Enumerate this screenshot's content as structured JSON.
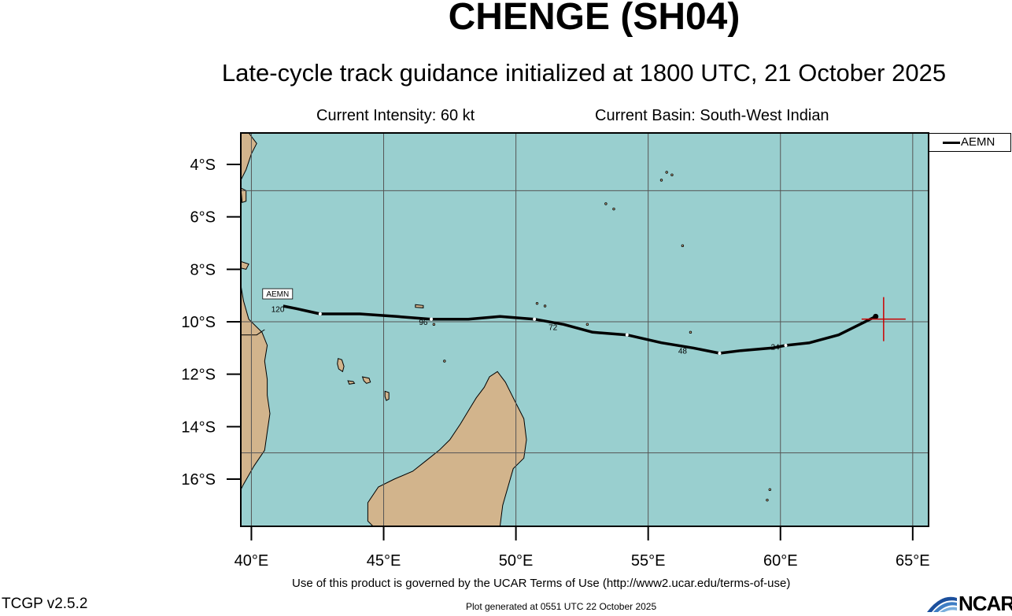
{
  "header": {
    "title": "CHENGE (SH04)",
    "subtitle": "Late-cycle track guidance initialized at 1800 UTC, 21 October 2025",
    "intensity": "Current Intensity: 60 kt",
    "basin": "Current Basin: South-West Indian"
  },
  "legend": {
    "label": "AEMN"
  },
  "footer": {
    "terms": "Use of this product is governed by the UCAR Terms of Use (http://www2.ucar.edu/terms-of-use)",
    "version": "TCGP v2.5.2",
    "generated": "Plot generated at 0551 UTC   22 October 2025",
    "logo_text": "NCAR"
  },
  "colors": {
    "ocean": "#99cfcf",
    "land": "#d2b48c",
    "grid": "#555555",
    "track": "#000000",
    "current_position_marker": "#cc0000"
  },
  "map": {
    "lon_range": [
      39.6,
      65.6
    ],
    "lat_range": [
      -17.8,
      -2.8
    ],
    "x_ticks": [
      {
        "lon": 40,
        "label": "40°E"
      },
      {
        "lon": 45,
        "label": "45°E"
      },
      {
        "lon": 50,
        "label": "50°E"
      },
      {
        "lon": 55,
        "label": "55°E"
      },
      {
        "lon": 60,
        "label": "60°E"
      },
      {
        "lon": 65,
        "label": "65°E"
      }
    ],
    "y_ticks": [
      {
        "lat": -4,
        "label": "4°S"
      },
      {
        "lat": -6,
        "label": "6°S"
      },
      {
        "lat": -8,
        "label": "8°S"
      },
      {
        "lat": -10,
        "label": "10°S"
      },
      {
        "lat": -12,
        "label": "12°S"
      },
      {
        "lat": -14,
        "label": "14°S"
      },
      {
        "lat": -16,
        "label": "16°S"
      }
    ],
    "grid_lons": [
      40,
      45,
      50,
      55,
      60,
      65
    ],
    "grid_lats": [
      -5,
      -10,
      -15
    ]
  },
  "chart_data": {
    "type": "line",
    "series": [
      {
        "name": "AEMN",
        "points": [
          {
            "lon": 63.6,
            "lat": -9.8
          },
          {
            "lon": 62.2,
            "lat": -10.5
          },
          {
            "lon": 61.1,
            "lat": -10.8
          },
          {
            "lon": 60.2,
            "lat": -10.9
          },
          {
            "lon": 59.7,
            "lat": -11.0
          },
          {
            "lon": 58.5,
            "lat": -11.1
          },
          {
            "lon": 57.7,
            "lat": -11.2
          },
          {
            "lon": 56.7,
            "lat": -11.0
          },
          {
            "lon": 55.5,
            "lat": -10.8
          },
          {
            "lon": 54.2,
            "lat": -10.5
          },
          {
            "lon": 52.9,
            "lat": -10.4
          },
          {
            "lon": 51.8,
            "lat": -10.1
          },
          {
            "lon": 50.7,
            "lat": -9.9
          },
          {
            "lon": 49.4,
            "lat": -9.8
          },
          {
            "lon": 48.2,
            "lat": -9.9
          },
          {
            "lon": 46.8,
            "lat": -9.9
          },
          {
            "lon": 45.5,
            "lat": -9.8
          },
          {
            "lon": 44.1,
            "lat": -9.7
          },
          {
            "lon": 42.6,
            "lat": -9.7
          },
          {
            "lon": 41.7,
            "lat": -9.5
          },
          {
            "lon": 41.2,
            "lat": -9.4
          }
        ],
        "labels": [
          {
            "text": "24",
            "lon": 59.8,
            "lat": -10.95
          },
          {
            "text": "48",
            "lon": 56.3,
            "lat": -11.1
          },
          {
            "text": "72",
            "lon": 51.4,
            "lat": -10.2
          },
          {
            "text": "96",
            "lon": 46.5,
            "lat": -10.0
          },
          {
            "text": "120",
            "lon": 41.0,
            "lat": -9.5
          }
        ],
        "end_label": "AEMN"
      }
    ],
    "current_position": {
      "lon": 63.9,
      "lat": -9.9
    }
  }
}
